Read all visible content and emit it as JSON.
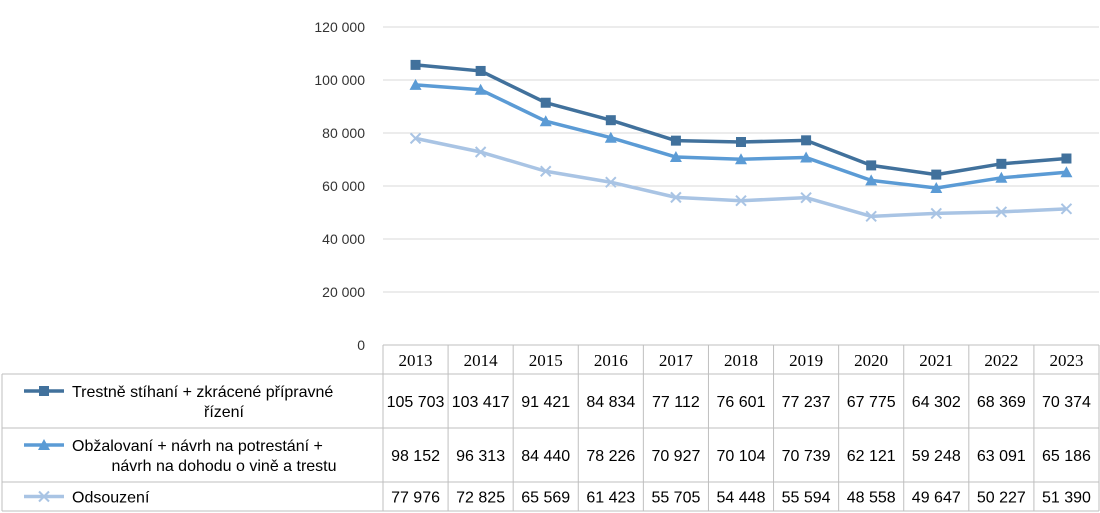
{
  "chart_data": {
    "type": "line",
    "title": "",
    "xlabel": "",
    "ylabel": "",
    "ylim": [
      0,
      120000
    ],
    "y_ticks": [
      "0",
      "20 000",
      "40 000",
      "60 000",
      "80 000",
      "100 000",
      "120 000"
    ],
    "grid": true,
    "legend_placement": "data table below chart",
    "categories": [
      "2013",
      "2014",
      "2015",
      "2016",
      "2017",
      "2018",
      "2019",
      "2020",
      "2021",
      "2022",
      "2023"
    ],
    "series": [
      {
        "name_lines": [
          "Trestně stíhaní + zkrácené přípravné",
          "řízení"
        ],
        "marker": "square",
        "color": "#41719c",
        "values": [
          105703,
          103417,
          91421,
          84834,
          77112,
          76601,
          77237,
          67775,
          64302,
          68369,
          70374
        ],
        "labels": [
          "105 703",
          "103 417",
          "91 421",
          "84 834",
          "77 112",
          "76 601",
          "77 237",
          "67 775",
          "64 302",
          "68 369",
          "70 374"
        ]
      },
      {
        "name_lines": [
          "Obžalovaní + návrh na potrestání +",
          "návrh na dohodu o vině a trestu"
        ],
        "marker": "triangle",
        "color": "#5b9bd5",
        "values": [
          98152,
          96313,
          84440,
          78226,
          70927,
          70104,
          70739,
          62121,
          59248,
          63091,
          65186
        ],
        "labels": [
          "98 152",
          "96 313",
          "84 440",
          "78 226",
          "70 927",
          "70 104",
          "70 739",
          "62 121",
          "59 248",
          "63 091",
          "65 186"
        ]
      },
      {
        "name_lines": [
          "Odsouzení"
        ],
        "marker": "x",
        "color": "#a9c4e4",
        "values": [
          77976,
          72825,
          65569,
          61423,
          55705,
          54448,
          55594,
          48558,
          49647,
          50227,
          51390
        ],
        "labels": [
          "77 976",
          "72 825",
          "65 569",
          "61 423",
          "55 705",
          "54 448",
          "55 594",
          "48 558",
          "49 647",
          "50 227",
          "51 390"
        ]
      }
    ]
  }
}
